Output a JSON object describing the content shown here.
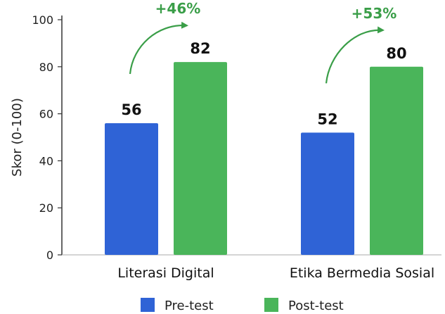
{
  "chart_data": {
    "type": "bar",
    "categories": [
      "Literasi Digital",
      "Etika Bermedia Sosial"
    ],
    "series": [
      {
        "name": "Pre-test",
        "values": [
          56,
          52
        ],
        "color": "#2f63d6"
      },
      {
        "name": "Post-test",
        "values": [
          82,
          80
        ],
        "color": "#4ab55a"
      }
    ],
    "annotations": [
      {
        "category": "Literasi Digital",
        "text": "+46%"
      },
      {
        "category": "Etika Bermedia Sosial",
        "text": "+53%"
      }
    ],
    "annotation_color": "#3a9e48",
    "ylabel": "Skor (0-100)",
    "xlabel": "",
    "ylim": [
      0,
      100
    ],
    "yticks": [
      0,
      20,
      40,
      60,
      80,
      100
    ],
    "grid": false,
    "legend": "bottom"
  }
}
